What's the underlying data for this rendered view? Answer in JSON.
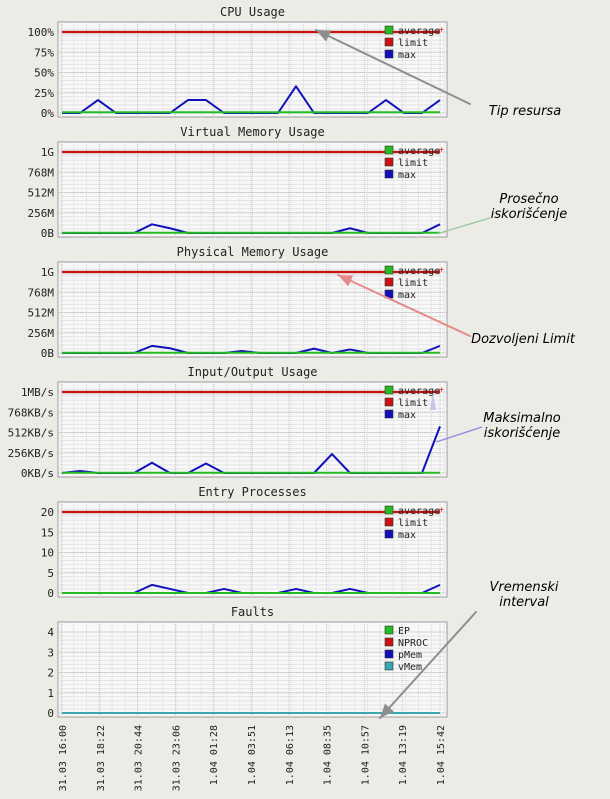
{
  "time_axis_labels": [
    "31.03 16:00",
    "31.03 18:22",
    "31.03 20:44",
    "31.03 23:06",
    "1.04 01:28",
    "1.04 03:51",
    "1.04 06:13",
    "1.04 08:35",
    "1.04 10:57",
    "1.04 13:19",
    "1.04 15:42"
  ],
  "colors": {
    "average": "#22bb22",
    "limit": "#cc1111",
    "max": "#1111bb",
    "vmem": "#3aa6b0",
    "panel_bg": "#f8f8f8",
    "page_bg": "#ecebe6"
  },
  "chart_data": [
    {
      "type": "line",
      "title": "CPU Usage",
      "yticks": [
        "100%",
        "75%",
        "50%",
        "25%",
        "0%"
      ],
      "ylim": [
        0,
        100
      ],
      "x": [
        0,
        1,
        2,
        3,
        4,
        5,
        6,
        7,
        8,
        9,
        10,
        11,
        12,
        13,
        14,
        15,
        16,
        17,
        18,
        19,
        20,
        21
      ],
      "series": [
        {
          "name": "average",
          "values": [
            1,
            1,
            1,
            1,
            1,
            1,
            1,
            1,
            1,
            1,
            1,
            1,
            1,
            1,
            1,
            1,
            1,
            1,
            1,
            1,
            1,
            1
          ]
        },
        {
          "name": "limit",
          "values": [
            100,
            100,
            100,
            100,
            100,
            100,
            100,
            100,
            100,
            100,
            100,
            100,
            100,
            100,
            100,
            100,
            100,
            100,
            100,
            100,
            100,
            100
          ]
        },
        {
          "name": "max",
          "values": [
            0,
            0,
            16,
            0,
            0,
            0,
            0,
            16,
            16,
            0,
            0,
            0,
            0,
            33,
            0,
            0,
            0,
            0,
            16,
            0,
            0,
            16
          ]
        }
      ],
      "legend": [
        "average",
        "limit",
        "max"
      ],
      "legend_position": "top-right"
    },
    {
      "type": "line",
      "title": "Virtual Memory Usage",
      "yticks": [
        "1G",
        "768M",
        "512M",
        "256M",
        "0B"
      ],
      "ylim": [
        0,
        1024
      ],
      "x": [
        0,
        1,
        2,
        3,
        4,
        5,
        6,
        7,
        8,
        9,
        10,
        11,
        12,
        13,
        14,
        15,
        16,
        17,
        18,
        19,
        20,
        21
      ],
      "series": [
        {
          "name": "average",
          "values": [
            3,
            3,
            3,
            3,
            3,
            3,
            3,
            3,
            3,
            3,
            3,
            3,
            3,
            3,
            3,
            3,
            3,
            3,
            3,
            3,
            3,
            3
          ]
        },
        {
          "name": "limit",
          "values": [
            1024,
            1024,
            1024,
            1024,
            1024,
            1024,
            1024,
            1024,
            1024,
            1024,
            1024,
            1024,
            1024,
            1024,
            1024,
            1024,
            1024,
            1024,
            1024,
            1024,
            1024,
            1024
          ]
        },
        {
          "name": "max",
          "values": [
            0,
            0,
            0,
            0,
            0,
            110,
            60,
            0,
            0,
            0,
            0,
            0,
            0,
            0,
            0,
            0,
            60,
            0,
            0,
            0,
            0,
            110
          ]
        }
      ],
      "legend": [
        "average",
        "limit",
        "max"
      ],
      "legend_position": "top-right"
    },
    {
      "type": "line",
      "title": "Physical Memory Usage",
      "yticks": [
        "1G",
        "768M",
        "512M",
        "256M",
        "0B"
      ],
      "ylim": [
        0,
        1024
      ],
      "x": [
        0,
        1,
        2,
        3,
        4,
        5,
        6,
        7,
        8,
        9,
        10,
        11,
        12,
        13,
        14,
        15,
        16,
        17,
        18,
        19,
        20,
        21
      ],
      "series": [
        {
          "name": "average",
          "values": [
            3,
            3,
            3,
            3,
            3,
            3,
            3,
            3,
            3,
            3,
            3,
            3,
            3,
            3,
            3,
            3,
            3,
            3,
            3,
            3,
            3,
            3
          ]
        },
        {
          "name": "limit",
          "values": [
            1024,
            1024,
            1024,
            1024,
            1024,
            1024,
            1024,
            1024,
            1024,
            1024,
            1024,
            1024,
            1024,
            1024,
            1024,
            1024,
            1024,
            1024,
            1024,
            1024,
            1024,
            1024
          ]
        },
        {
          "name": "max",
          "values": [
            0,
            0,
            0,
            0,
            0,
            90,
            60,
            0,
            0,
            0,
            25,
            0,
            0,
            0,
            55,
            0,
            45,
            0,
            0,
            0,
            0,
            90
          ]
        }
      ],
      "legend": [
        "average",
        "limit",
        "max"
      ],
      "legend_position": "top-right"
    },
    {
      "type": "line",
      "title": "Input/Output Usage",
      "yticks": [
        "1MB/s",
        "768KB/s",
        "512KB/s",
        "256KB/s",
        "0KB/s"
      ],
      "ylim": [
        0,
        1024
      ],
      "x": [
        0,
        1,
        2,
        3,
        4,
        5,
        6,
        7,
        8,
        9,
        10,
        11,
        12,
        13,
        14,
        15,
        16,
        17,
        18,
        19,
        20,
        21
      ],
      "series": [
        {
          "name": "average",
          "values": [
            3,
            3,
            3,
            3,
            3,
            3,
            3,
            3,
            3,
            3,
            3,
            3,
            3,
            3,
            3,
            3,
            3,
            3,
            3,
            3,
            3,
            3
          ]
        },
        {
          "name": "limit",
          "values": [
            1024,
            1024,
            1024,
            1024,
            1024,
            1024,
            1024,
            1024,
            1024,
            1024,
            1024,
            1024,
            1024,
            1024,
            1024,
            1024,
            1024,
            1024,
            1024,
            1024,
            1024,
            1024
          ]
        },
        {
          "name": "max",
          "values": [
            0,
            25,
            0,
            0,
            0,
            130,
            0,
            0,
            120,
            0,
            0,
            0,
            0,
            0,
            0,
            240,
            0,
            0,
            0,
            0,
            0,
            590
          ]
        }
      ],
      "legend": [
        "average",
        "limit",
        "max"
      ],
      "legend_position": "top-right"
    },
    {
      "type": "line",
      "title": "Entry Processes",
      "yticks": [
        "20",
        "15",
        "10",
        "5",
        "0"
      ],
      "ylim": [
        0,
        20
      ],
      "x": [
        0,
        1,
        2,
        3,
        4,
        5,
        6,
        7,
        8,
        9,
        10,
        11,
        12,
        13,
        14,
        15,
        16,
        17,
        18,
        19,
        20,
        21
      ],
      "series": [
        {
          "name": "average",
          "values": [
            0,
            0,
            0,
            0,
            0,
            0,
            0,
            0,
            0,
            0,
            0,
            0,
            0,
            0,
            0,
            0,
            0,
            0,
            0,
            0,
            0,
            0
          ]
        },
        {
          "name": "limit",
          "values": [
            20,
            20,
            20,
            20,
            20,
            20,
            20,
            20,
            20,
            20,
            20,
            20,
            20,
            20,
            20,
            20,
            20,
            20,
            20,
            20,
            20,
            20
          ]
        },
        {
          "name": "max",
          "values": [
            0,
            0,
            0,
            0,
            0,
            2,
            1,
            0,
            0,
            1,
            0,
            0,
            0,
            1,
            0,
            0,
            1,
            0,
            0,
            0,
            0,
            2
          ]
        }
      ],
      "legend": [
        "average",
        "limit",
        "max"
      ],
      "legend_position": "top-right"
    },
    {
      "type": "line",
      "title": "Faults",
      "yticks": [
        "4",
        "3",
        "2",
        "1",
        "0"
      ],
      "ylim": [
        0,
        4
      ],
      "x": [
        0,
        1,
        2,
        3,
        4,
        5,
        6,
        7,
        8,
        9,
        10,
        11,
        12,
        13,
        14,
        15,
        16,
        17,
        18,
        19,
        20,
        21
      ],
      "series": [
        {
          "name": "EP",
          "values": [
            0,
            0,
            0,
            0,
            0,
            0,
            0,
            0,
            0,
            0,
            0,
            0,
            0,
            0,
            0,
            0,
            0,
            0,
            0,
            0,
            0,
            0
          ]
        },
        {
          "name": "NPROC",
          "values": [
            0,
            0,
            0,
            0,
            0,
            0,
            0,
            0,
            0,
            0,
            0,
            0,
            0,
            0,
            0,
            0,
            0,
            0,
            0,
            0,
            0,
            0
          ]
        },
        {
          "name": "pMem",
          "values": [
            0,
            0,
            0,
            0,
            0,
            0,
            0,
            0,
            0,
            0,
            0,
            0,
            0,
            0,
            0,
            0,
            0,
            0,
            0,
            0,
            0,
            0
          ]
        },
        {
          "name": "vMem",
          "values": [
            0,
            0,
            0,
            0,
            0,
            0,
            0,
            0,
            0,
            0,
            0,
            0,
            0,
            0,
            0,
            0,
            0,
            0,
            0,
            0,
            0,
            0
          ]
        }
      ],
      "legend": [
        "EP",
        "NPROC",
        "pMem",
        "vMem"
      ],
      "legend_position": "top-right"
    }
  ],
  "annotations": [
    {
      "id": "tip",
      "text": "Tip resursa",
      "color": "#222222"
    },
    {
      "id": "avg",
      "text": "Prosečno iskorišćenje",
      "color": "#22aa22"
    },
    {
      "id": "limit",
      "text": "Dozvoljeni Limit",
      "color": "#e01818"
    },
    {
      "id": "max",
      "text": "Maksimalno iskorišćenje",
      "color": "#2222dd"
    },
    {
      "id": "time",
      "text": "Vremenski interval",
      "color": "#222222"
    }
  ]
}
